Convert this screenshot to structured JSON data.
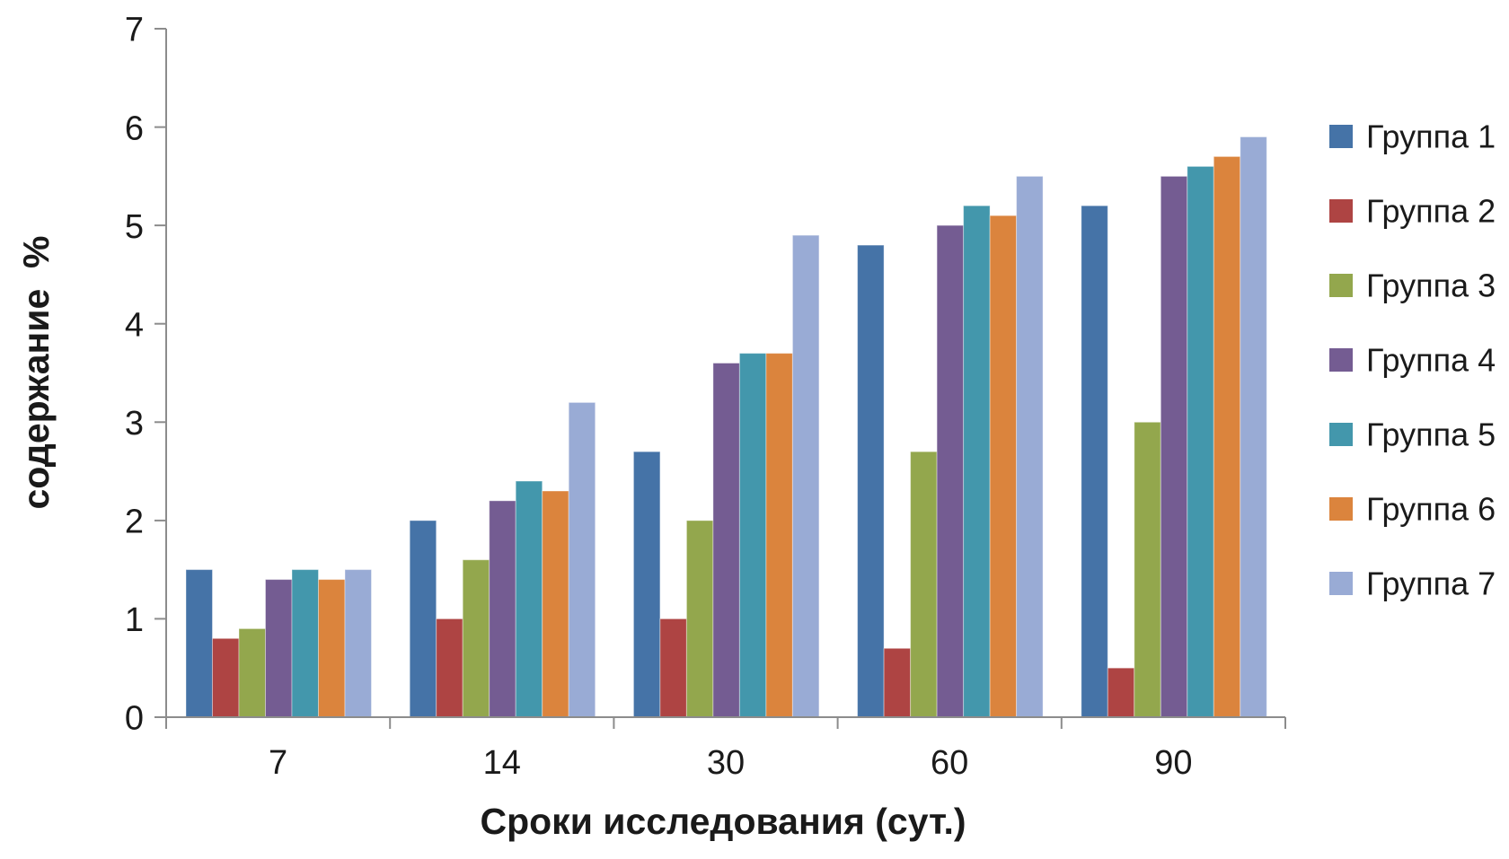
{
  "chart_data": {
    "type": "bar",
    "title": "",
    "xlabel": "Сроки исследования (сут.)",
    "ylabel": "содержание  %",
    "categories": [
      "7",
      "14",
      "30",
      "60",
      "90"
    ],
    "series": [
      {
        "name": "Группа 1",
        "color": "#4573A7",
        "values": [
          1.5,
          2.0,
          2.7,
          4.8,
          5.2
        ]
      },
      {
        "name": "Группа 2",
        "color": "#AE4443",
        "values": [
          0.8,
          1.0,
          1.0,
          0.7,
          0.5
        ]
      },
      {
        "name": "Группа 3",
        "color": "#93A74D",
        "values": [
          0.9,
          1.6,
          2.0,
          2.7,
          3.0
        ]
      },
      {
        "name": "Группа 4",
        "color": "#745C92",
        "values": [
          1.4,
          2.2,
          3.6,
          5.0,
          5.5
        ]
      },
      {
        "name": "Группа 5",
        "color": "#4397AC",
        "values": [
          1.5,
          2.4,
          3.7,
          5.2,
          5.6
        ]
      },
      {
        "name": "Группа 6",
        "color": "#DB843D",
        "values": [
          1.4,
          2.3,
          3.7,
          5.1,
          5.7
        ]
      },
      {
        "name": "Группа 7",
        "color": "#99ABD5",
        "values": [
          1.5,
          3.2,
          4.9,
          5.5,
          5.9
        ]
      }
    ],
    "ylim": [
      0,
      7
    ],
    "yticks": [
      "0",
      "1",
      "2",
      "3",
      "4",
      "5",
      "6",
      "7"
    ],
    "grid": false,
    "legend_position": "right",
    "axis_color": "#8C8C8C",
    "text_color": "#1A1A1A",
    "background": "#FFFFFF"
  }
}
